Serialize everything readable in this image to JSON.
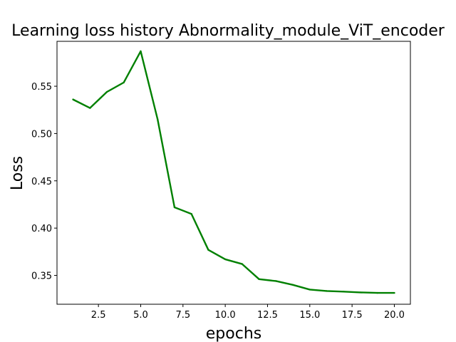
{
  "chart_data": {
    "type": "line",
    "title": "Learning loss history Abnormality_module_ViT_encoder",
    "xlabel": "epochs",
    "ylabel": "Loss",
    "xlim": [
      0.05,
      20.95
    ],
    "ylim": [
      0.3195,
      0.5975
    ],
    "x_ticks": [
      2.5,
      5.0,
      7.5,
      10.0,
      12.5,
      15.0,
      17.5,
      20.0
    ],
    "x_tick_labels": [
      "2.5",
      "5.0",
      "7.5",
      "10.0",
      "12.5",
      "15.0",
      "17.5",
      "20.0"
    ],
    "y_ticks": [
      0.35,
      0.4,
      0.45,
      0.5,
      0.55
    ],
    "y_tick_labels": [
      "0.35",
      "0.40",
      "0.45",
      "0.50",
      "0.55"
    ],
    "grid": false,
    "series": [
      {
        "color": "#008000",
        "x": [
          1,
          2,
          3,
          4,
          5,
          6,
          7,
          8,
          9,
          10,
          11,
          12,
          13,
          14,
          15,
          16,
          17,
          18,
          19,
          20
        ],
        "values": [
          0.536,
          0.527,
          0.544,
          0.554,
          0.587,
          0.515,
          0.422,
          0.415,
          0.377,
          0.367,
          0.362,
          0.346,
          0.344,
          0.34,
          0.335,
          0.3335,
          0.3328,
          0.332,
          0.3315,
          0.3315
        ]
      }
    ]
  }
}
